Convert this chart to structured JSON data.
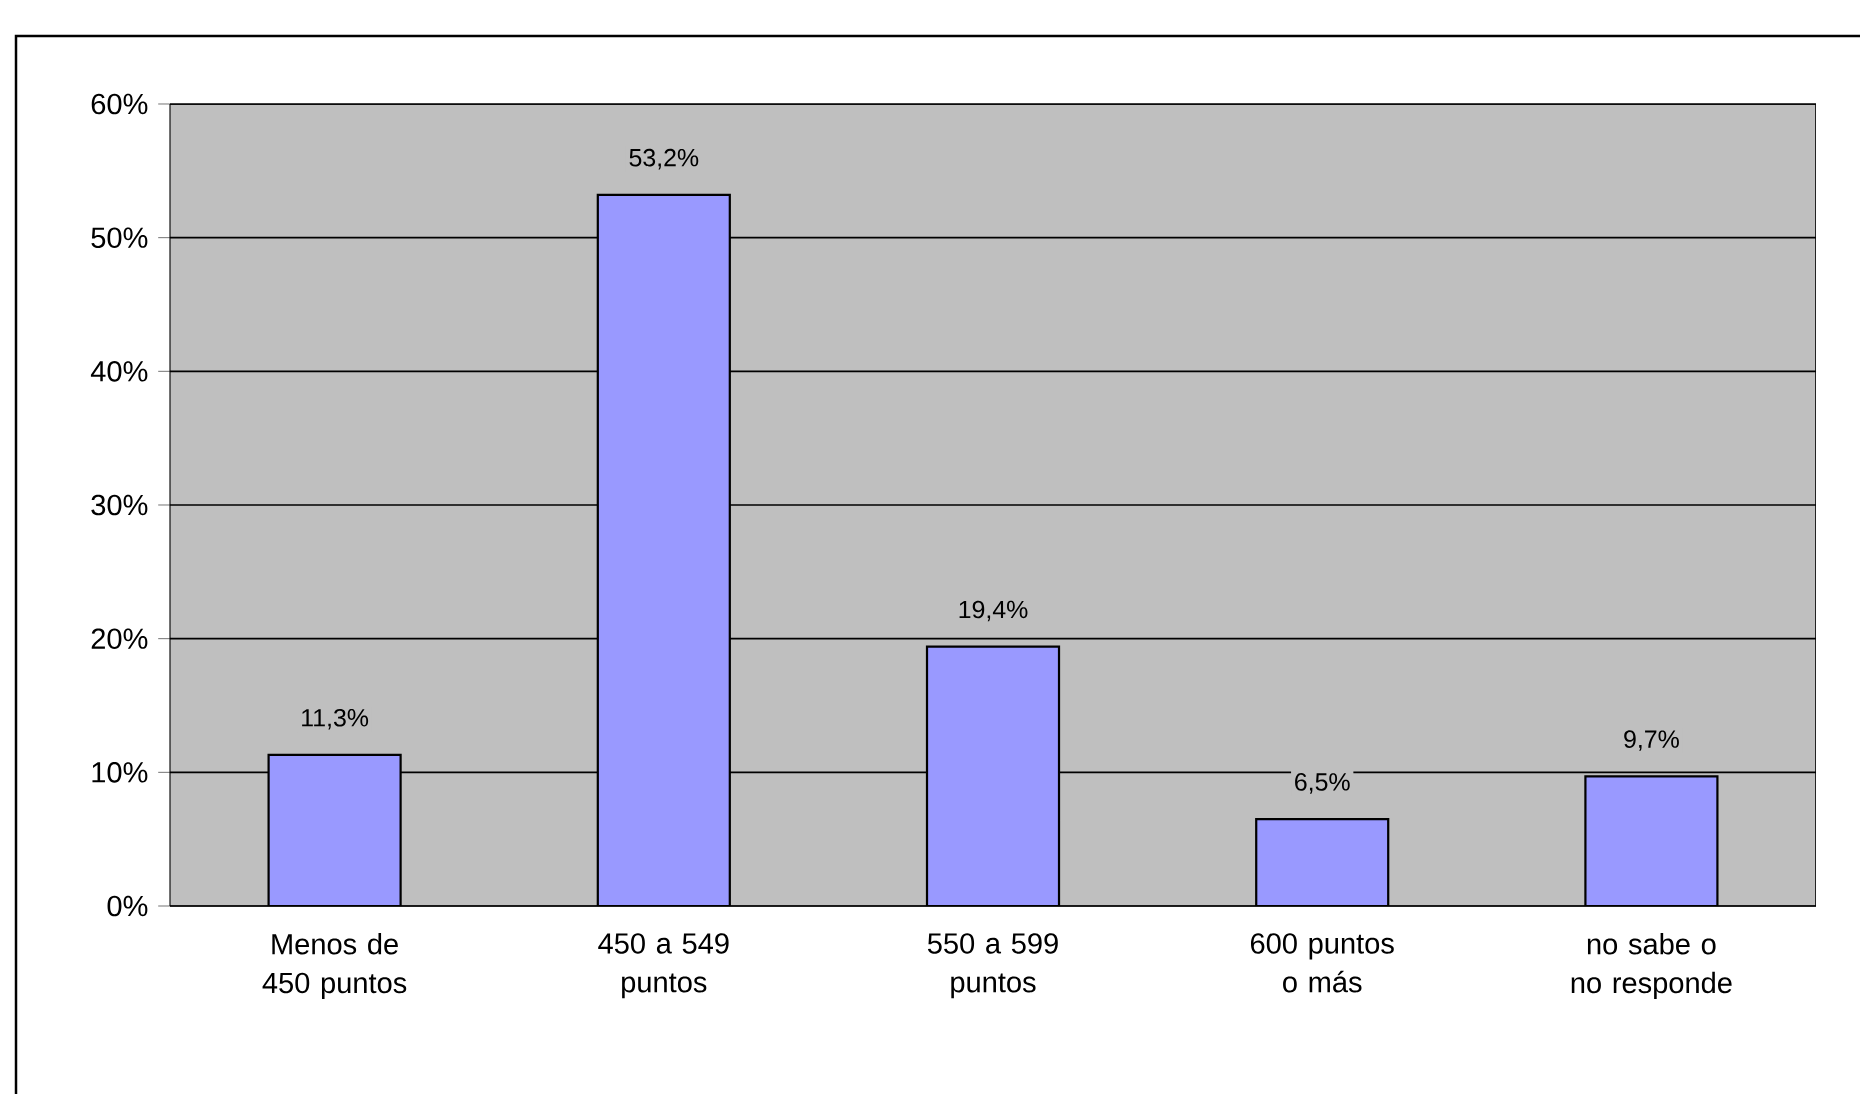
{
  "chart_data": {
    "type": "bar",
    "categories": [
      "Menos de 450 puntos",
      "450 a 549 puntos",
      "550 a 599 puntos",
      "600 puntos o más",
      "no sabe o no responde"
    ],
    "values": [
      11.3,
      53.2,
      19.4,
      6.5,
      9.7
    ],
    "value_labels": [
      "11,3%",
      "53,2%",
      "19,4%",
      "6,5%",
      "9,7%"
    ],
    "color": "#9999ff",
    "ylim": [
      0,
      60
    ],
    "yticks": [
      {
        "value": 0,
        "label": "0%"
      },
      {
        "value": 10,
        "label": "10%"
      },
      {
        "value": 20,
        "label": "20%"
      },
      {
        "value": 30,
        "label": "30%"
      },
      {
        "value": 40,
        "label": "40%"
      },
      {
        "value": 50,
        "label": "50%"
      },
      {
        "value": 60,
        "label": "60%"
      }
    ],
    "grid": "y"
  }
}
